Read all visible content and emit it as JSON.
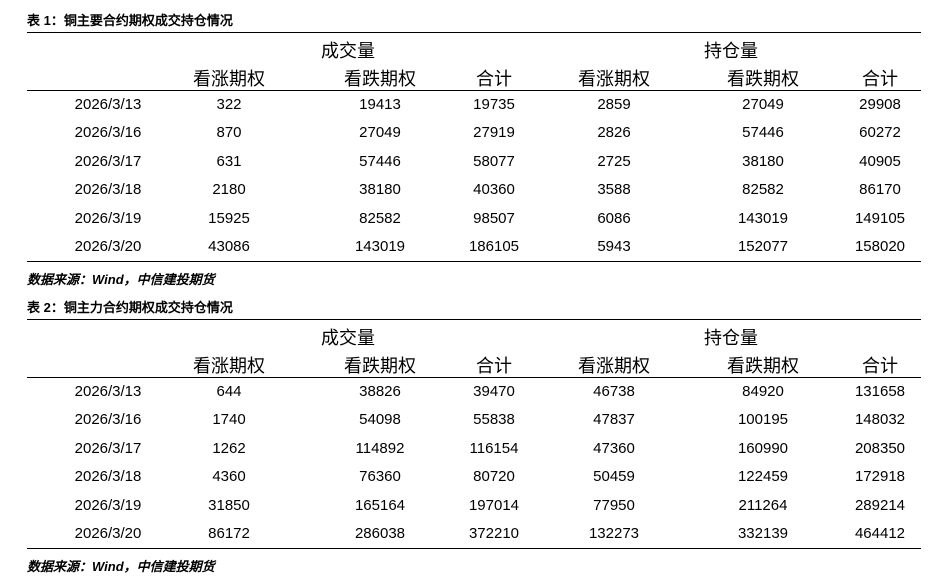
{
  "tables": [
    {
      "caption": "表 1：铜主要合约期权成交持仓情况",
      "groups": [
        "成交量",
        "持仓量"
      ],
      "columns": [
        "看涨期权",
        "看跌期权",
        "合计",
        "看涨期权",
        "看跌期权",
        "合计"
      ],
      "rows": [
        [
          "2026/3/13",
          322,
          19413,
          19735,
          2859,
          27049,
          29908
        ],
        [
          "2026/3/16",
          870,
          27049,
          27919,
          2826,
          57446,
          60272
        ],
        [
          "2026/3/17",
          631,
          57446,
          58077,
          2725,
          38180,
          40905
        ],
        [
          "2026/3/18",
          2180,
          38180,
          40360,
          3588,
          82582,
          86170
        ],
        [
          "2026/3/19",
          15925,
          82582,
          98507,
          6086,
          143019,
          149105
        ],
        [
          "2026/3/20",
          43086,
          143019,
          186105,
          5943,
          152077,
          158020
        ]
      ],
      "source": "数据来源：Wind，中信建投期货"
    },
    {
      "caption": "表 2：铜主力合约期权成交持仓情况",
      "groups": [
        "成交量",
        "持仓量"
      ],
      "columns": [
        "看涨期权",
        "看跌期权",
        "合计",
        "看涨期权",
        "看跌期权",
        "合计"
      ],
      "rows": [
        [
          "2026/3/13",
          644,
          38826,
          39470,
          46738,
          84920,
          131658
        ],
        [
          "2026/3/16",
          1740,
          54098,
          55838,
          47837,
          100195,
          148032
        ],
        [
          "2026/3/17",
          1262,
          114892,
          116154,
          47360,
          160990,
          208350
        ],
        [
          "2026/3/18",
          4360,
          76360,
          80720,
          50459,
          122459,
          172918
        ],
        [
          "2026/3/19",
          31850,
          165164,
          197014,
          77950,
          211264,
          289214
        ],
        [
          "2026/3/20",
          86172,
          286038,
          372210,
          132273,
          332139,
          464412
        ]
      ],
      "source": "数据来源：Wind，中信建投期货"
    }
  ]
}
